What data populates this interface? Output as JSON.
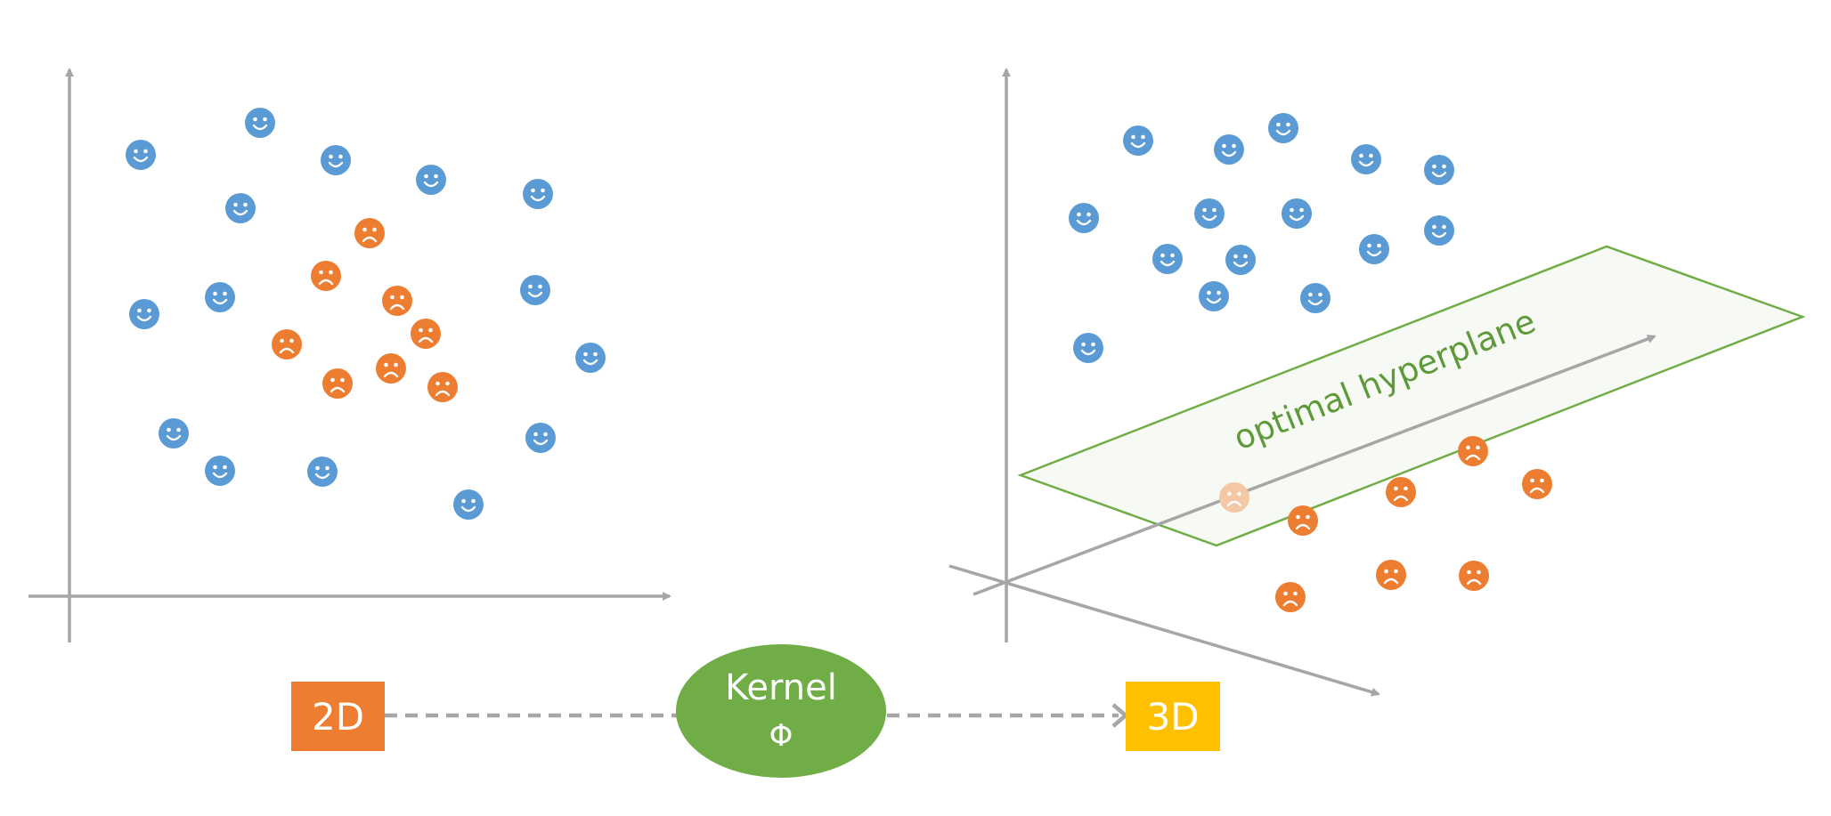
{
  "labels": {
    "left_box": "2D",
    "kernel_line1": "Kernel",
    "kernel_symbol": "Φ",
    "right_box": "3D",
    "plane": "optimal hyperplane"
  },
  "colors": {
    "happy": "#5B9BD5",
    "sad": "#ED7D31",
    "sad_faded": "#F4C7A5",
    "axis": "#A6A6A6",
    "kernel": "#70AD47",
    "plane_edge": "#70AD47",
    "plane_fill": "#F7FAF4",
    "plane_text": "#5E9A3A",
    "box_2d": "#ED7D31",
    "box_3d": "#FFC000"
  },
  "icons": {
    "happy": "happy-face-icon",
    "sad": "sad-face-icon"
  }
}
